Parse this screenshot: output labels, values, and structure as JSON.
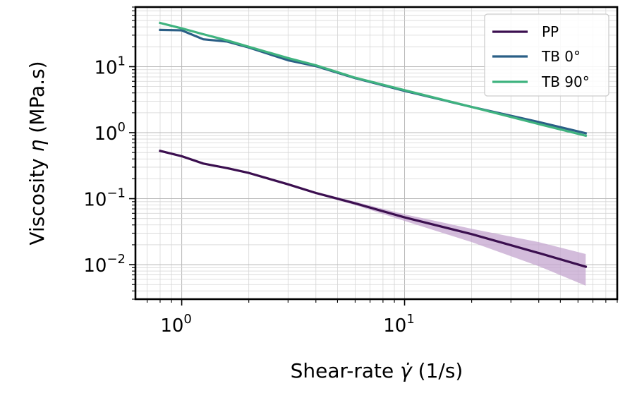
{
  "chart_data": {
    "type": "line",
    "x_scale": "log",
    "y_scale": "log",
    "xlim": [
      0.62,
      90
    ],
    "ylim": [
      0.003,
      80
    ],
    "xlabel_text": "Shear-rate ",
    "xlabel_symbol": "γ̇",
    "xlabel_unit": " (1/s)",
    "ylabel_text": "Viscosity ",
    "ylabel_symbol": "η",
    "ylabel_unit": " (MPa.s)",
    "grid": true,
    "legend_position": "top-right",
    "x_ticks": [
      {
        "value": 1,
        "base": "10",
        "exp": "0"
      },
      {
        "value": 10,
        "base": "10",
        "exp": "1"
      }
    ],
    "y_ticks": [
      {
        "value": 10,
        "base": "10",
        "exp": "1"
      },
      {
        "value": 1,
        "base": "10",
        "exp": "0"
      },
      {
        "value": 0.1,
        "base": "10",
        "exp": "−1"
      },
      {
        "value": 0.01,
        "base": "10",
        "exp": "−2"
      }
    ],
    "series": [
      {
        "name": "PP",
        "color": "#3b0f4f",
        "band_color": "#c4a6cf",
        "x": [
          0.8,
          1.0,
          1.25,
          1.6,
          2.0,
          3.0,
          4.0,
          6.0,
          10,
          20,
          40,
          65
        ],
        "y": [
          0.53,
          0.44,
          0.34,
          0.29,
          0.245,
          0.165,
          0.122,
          0.085,
          0.052,
          0.029,
          0.015,
          0.0093
        ],
        "band_low": [
          0.51,
          0.42,
          0.33,
          0.28,
          0.235,
          0.158,
          0.117,
          0.08,
          0.046,
          0.022,
          0.0095,
          0.0048
        ],
        "band_high": [
          0.55,
          0.46,
          0.35,
          0.3,
          0.255,
          0.172,
          0.127,
          0.09,
          0.058,
          0.035,
          0.022,
          0.0145
        ]
      },
      {
        "name": "TB 0°",
        "color": "#2b5f86",
        "x": [
          0.8,
          1.0,
          1.25,
          1.6,
          2.0,
          3.0,
          4.0,
          6.0,
          10,
          20,
          40,
          65
        ],
        "y": [
          36,
          35.5,
          26,
          24,
          19.5,
          12.5,
          10.2,
          6.7,
          4.3,
          2.45,
          1.45,
          0.98
        ]
      },
      {
        "name": "TB 90°",
        "color": "#3fb37f",
        "x": [
          0.8,
          1.0,
          1.25,
          1.6,
          2.0,
          3.0,
          4.0,
          6.0,
          10,
          20,
          40,
          65
        ],
        "y": [
          46,
          38,
          31,
          25,
          20,
          13.5,
          10.5,
          6.8,
          4.4,
          2.45,
          1.35,
          0.9
        ]
      }
    ]
  }
}
